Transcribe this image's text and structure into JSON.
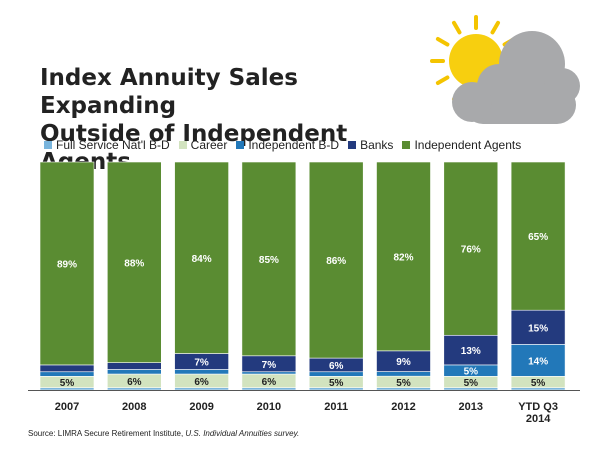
{
  "title_lines": [
    "Index Annuity Sales Expanding",
    "Outside of Independent Agents"
  ],
  "source": {
    "prefix": "Source: LIMRA Secure Retirement Institute, ",
    "italic": "U.S. Individual Annuities survey."
  },
  "icons": [
    "sun-icon",
    "cloud-icon"
  ],
  "colors": {
    "full_service": "#78b4dc",
    "career": "#d2e3bf",
    "independent_bd": "#2278b9",
    "banks": "#233a7e",
    "independent_agents": "#5a8c32"
  },
  "chart_data": {
    "type": "bar",
    "stacked": true,
    "normalized": true,
    "categories": [
      "2007",
      "2008",
      "2009",
      "2010",
      "2011",
      "2012",
      "2013",
      "YTD Q3\n2014"
    ],
    "legend_position": "top",
    "series": [
      {
        "name": "Full Service Nat'l B-D",
        "key": "full_service",
        "values": [
          1,
          1,
          1,
          1,
          1,
          1,
          1,
          1
        ],
        "labels": [
          "",
          "",
          "",
          "",
          "",
          "",
          "",
          ""
        ]
      },
      {
        "name": "Career",
        "key": "career",
        "values": [
          5,
          6,
          6,
          6,
          5,
          5,
          5,
          5
        ],
        "labels": [
          "5%",
          "6%",
          "6%",
          "6%",
          "5%",
          "5%",
          "5%",
          "5%"
        ]
      },
      {
        "name": "Independent B-D",
        "key": "independent_bd",
        "values": [
          2,
          2,
          2,
          1,
          2,
          2,
          5,
          14
        ],
        "labels": [
          "",
          "",
          "",
          "",
          "",
          "",
          "5%",
          "14%"
        ]
      },
      {
        "name": "Banks",
        "key": "banks",
        "values": [
          3,
          3,
          7,
          7,
          6,
          9,
          13,
          15
        ],
        "labels": [
          "",
          "",
          "7%",
          "7%",
          "6%",
          "9%",
          "13%",
          "15%"
        ]
      },
      {
        "name": "Independent Agents",
        "key": "independent_agents",
        "values": [
          89,
          88,
          84,
          85,
          86,
          82,
          76,
          65
        ],
        "labels": [
          "89%",
          "88%",
          "84%",
          "85%",
          "86%",
          "82%",
          "76%",
          "65%"
        ]
      }
    ]
  }
}
